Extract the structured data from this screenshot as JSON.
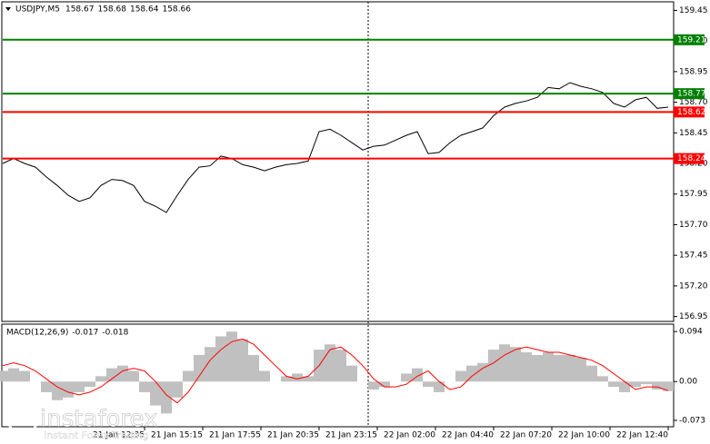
{
  "chart_data": [
    {
      "type": "line",
      "symbol": "USDJPY,M5",
      "ohlc": [
        158.67,
        158.68,
        158.64,
        158.66
      ],
      "x": [
        0,
        6,
        12,
        18,
        24,
        30,
        36,
        42,
        48,
        54,
        60,
        66,
        72,
        78,
        84,
        90,
        96,
        102,
        108,
        114,
        120,
        126,
        132,
        138,
        144,
        150,
        156,
        162,
        168,
        174,
        180,
        186,
        192,
        198,
        204,
        210,
        216,
        222,
        228,
        234,
        240,
        246,
        252,
        258,
        264,
        270,
        276,
        282,
        288,
        294,
        300,
        306,
        312,
        318,
        324,
        330,
        336,
        342,
        348,
        354,
        360,
        366
      ],
      "series": [
        {
          "color": "#000000",
          "values": [
            158.2,
            158.24,
            158.2,
            158.17,
            158.09,
            158.02,
            157.94,
            157.89,
            157.92,
            158.02,
            158.07,
            158.06,
            158.02,
            157.89,
            157.85,
            157.8,
            157.94,
            158.07,
            158.17,
            158.18,
            158.26,
            158.24,
            158.19,
            158.17,
            158.14,
            158.17,
            158.19,
            158.2,
            158.22,
            158.46,
            158.48,
            158.43,
            158.37,
            158.31,
            158.34,
            158.35,
            158.39,
            158.43,
            158.46,
            158.28,
            158.29,
            158.37,
            158.43,
            158.46,
            158.49,
            158.59,
            158.66,
            158.69,
            158.71,
            158.74,
            158.82,
            158.81,
            158.86,
            158.83,
            158.81,
            158.78,
            158.69,
            158.66,
            158.72,
            158.74,
            158.65,
            158.66
          ]
        }
      ],
      "levels": [
        {
          "value": 159.21,
          "color": "#008000"
        },
        {
          "value": 158.77,
          "color": "#008000"
        },
        {
          "value": 158.62,
          "color": "#ff0000"
        },
        {
          "value": 158.24,
          "color": "#ff0000"
        }
      ],
      "separator_x": 201,
      "xlim": [
        0,
        369
      ],
      "ylim": [
        156.91,
        159.52
      ],
      "yticks": [
        159.45,
        {
          "value": 159.2,
          "label": "159.20"
        },
        158.95,
        {
          "value": 158.7,
          "label": "158.70"
        },
        158.45,
        {
          "value": 158.2,
          "label": "158.20"
        },
        157.95,
        {
          "value": 157.7,
          "label": "157.70"
        },
        157.45,
        {
          "value": 157.2,
          "label": "157.20"
        },
        156.95
      ]
    },
    {
      "type": "macd",
      "indicator": "MACD(12,26,9)",
      "indicator_values": [
        -0.017,
        -0.018
      ],
      "x": [
        0,
        6,
        12,
        18,
        24,
        30,
        36,
        42,
        48,
        54,
        60,
        66,
        72,
        78,
        84,
        90,
        96,
        102,
        108,
        114,
        120,
        126,
        132,
        138,
        144,
        150,
        156,
        162,
        168,
        174,
        180,
        186,
        192,
        198,
        204,
        210,
        216,
        222,
        228,
        234,
        240,
        246,
        252,
        258,
        264,
        270,
        276,
        282,
        288,
        294,
        300,
        306,
        312,
        318,
        324,
        330,
        336,
        342,
        348,
        354,
        360,
        366
      ],
      "series": [
        {
          "color": "#c0c0c0",
          "values": [
            0.02,
            0.025,
            0.02,
            0.0,
            -0.02,
            -0.035,
            -0.03,
            -0.02,
            -0.01,
            0.01,
            0.025,
            0.03,
            0.02,
            -0.02,
            -0.045,
            -0.06,
            -0.03,
            0.02,
            0.05,
            0.065,
            0.085,
            0.094,
            0.08,
            0.05,
            0.02,
            0.0,
            0.01,
            0.015,
            0.01,
            0.06,
            0.07,
            0.06,
            0.03,
            0.0,
            -0.015,
            -0.01,
            0.0,
            0.015,
            0.025,
            -0.01,
            -0.02,
            0.0,
            0.02,
            0.03,
            0.035,
            0.06,
            0.07,
            0.065,
            0.055,
            0.05,
            0.055,
            0.05,
            0.05,
            0.045,
            0.03,
            0.01,
            -0.01,
            -0.02,
            -0.01,
            -0.005,
            -0.015,
            -0.018
          ]
        },
        {
          "color": "#ff0000",
          "values": [
            0.03,
            0.035,
            0.03,
            0.02,
            0.005,
            -0.01,
            -0.02,
            -0.025,
            -0.02,
            -0.01,
            0.005,
            0.02,
            0.025,
            0.02,
            0.0,
            -0.025,
            -0.04,
            -0.02,
            0.01,
            0.04,
            0.06,
            0.075,
            0.08,
            0.07,
            0.05,
            0.03,
            0.01,
            0.005,
            0.01,
            0.03,
            0.06,
            0.065,
            0.05,
            0.03,
            0.005,
            -0.01,
            -0.01,
            -0.005,
            0.01,
            0.02,
            0.0,
            -0.015,
            -0.01,
            0.01,
            0.025,
            0.035,
            0.05,
            0.06,
            0.065,
            0.06,
            0.055,
            0.055,
            0.05,
            0.045,
            0.04,
            0.03,
            0.015,
            0.0,
            -0.015,
            -0.01,
            -0.01,
            -0.017
          ]
        }
      ],
      "xlim": [
        0,
        369
      ],
      "ylim": [
        -0.085,
        0.108
      ],
      "yticks": [
        0.094,
        {
          "value": 0,
          "label": "0.00"
        },
        -0.073
      ],
      "xticks": [
        {
          "value": 78,
          "label": "21 Jan 12:35"
        },
        {
          "value": 110,
          "label": "21 Jan 15:15"
        },
        {
          "value": 142,
          "label": "21 Jan 17:55"
        },
        {
          "value": 174,
          "label": "21 Jan 20:35"
        },
        {
          "value": 206,
          "label": "21 Jan 23:15"
        },
        {
          "value": 238,
          "label": "22 Jan 02:00"
        },
        {
          "value": 270,
          "label": "22 Jan 04:40"
        },
        {
          "value": 302,
          "label": "22 Jan 07:20"
        },
        {
          "value": 334,
          "label": "22 Jan 10:00"
        },
        {
          "value": 366,
          "label": "22 Jan 12:40"
        }
      ]
    }
  ],
  "logo": {
    "name": "instaforex",
    "tagline": "Instant Forex Trading"
  }
}
